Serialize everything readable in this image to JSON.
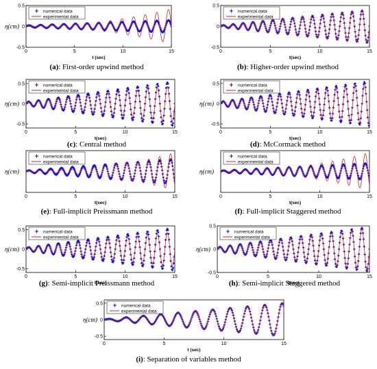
{
  "colors": {
    "numerical": "#1010e0",
    "experimental": "#d02020",
    "axis": "#000000"
  },
  "chart_data": [
    {
      "type": "line",
      "caption_letter": "(a)",
      "caption_text": ": First-order upwind method",
      "ylabel": "η(cm)",
      "xlabel": "t (sec)",
      "xlim": [
        0,
        15
      ],
      "ylim": [
        -0.5,
        0.5
      ],
      "xticks": [
        "0",
        "5",
        "10",
        "15"
      ],
      "yticks": [
        "0.5",
        "0",
        "-0.5"
      ],
      "legend": "top-left",
      "series": [
        {
          "name": "numerical data",
          "style": "markers",
          "amplitude_start": 0.02,
          "amplitude_end": 0.15,
          "period": 1.2,
          "growth": "linear"
        },
        {
          "name": "experimental data",
          "style": "line",
          "amplitude_start": 0.02,
          "amplitude_end": 0.42,
          "period": 1.2,
          "growth": "late"
        }
      ]
    },
    {
      "type": "line",
      "caption_letter": "(b)",
      "caption_text": ": Higher-order upwind method",
      "ylabel": "",
      "xlabel": "t(sec)",
      "xlim": [
        0,
        15
      ],
      "ylim": [
        -0.5,
        0.5
      ],
      "xticks": [
        "0",
        "5",
        "10",
        "15"
      ],
      "yticks": [
        "0.5",
        "0",
        "-0.5"
      ],
      "legend": "top-left",
      "series": [
        {
          "name": "numerical data",
          "style": "markers",
          "amplitude_start": 0.02,
          "amplitude_end": 0.4,
          "period": 1.0,
          "growth": "linear"
        },
        {
          "name": "experimental data",
          "style": "line",
          "amplitude_start": 0.02,
          "amplitude_end": 0.42,
          "period": 1.0,
          "growth": "linear"
        }
      ]
    },
    {
      "type": "line",
      "caption_letter": "(c)",
      "caption_text": ": Central method",
      "ylabel": "η(cm)",
      "xlabel": "t(sec)",
      "xlim": [
        0,
        15
      ],
      "ylim": [
        -0.6,
        0.6
      ],
      "xticks": [
        "0",
        "5",
        "10",
        "15"
      ],
      "yticks": [
        "0.5",
        "0",
        "-0.5"
      ],
      "legend": "top-left",
      "series": [
        {
          "name": "numerical data",
          "style": "markers",
          "amplitude_start": 0.04,
          "amplitude_end": 0.55,
          "period": 1.0,
          "growth": "linear"
        },
        {
          "name": "experimental data",
          "style": "line",
          "amplitude_start": 0.03,
          "amplitude_end": 0.45,
          "period": 1.0,
          "growth": "linear"
        }
      ]
    },
    {
      "type": "line",
      "caption_letter": "(d)",
      "caption_text": ": McCormack method",
      "ylabel": "η(cm)",
      "xlabel": "t(sec)",
      "xlim": [
        0,
        15
      ],
      "ylim": [
        -0.6,
        0.6
      ],
      "xticks": [
        "0",
        "5",
        "10",
        "15"
      ],
      "yticks": [
        "0.5",
        "0",
        "-0.5"
      ],
      "legend": "top-left",
      "series": [
        {
          "name": "numerical data",
          "style": "markers",
          "amplitude_start": 0.05,
          "amplitude_end": 0.55,
          "period": 0.95,
          "growth": "linear"
        },
        {
          "name": "experimental data",
          "style": "line",
          "amplitude_start": 0.04,
          "amplitude_end": 0.5,
          "period": 0.95,
          "growth": "linear"
        }
      ]
    },
    {
      "type": "line",
      "caption_letter": "(e)",
      "caption_text": ": Full-implicit Preissmann method",
      "ylabel": "η(cm)",
      "xlabel": "t(sec)",
      "xlim": [
        0,
        15
      ],
      "ylim": [
        -0.5,
        0.5
      ],
      "xticks": [
        "0",
        "5",
        "10",
        "15"
      ],
      "yticks": [],
      "legend": "top-left",
      "series": [
        {
          "name": "numerical data",
          "style": "markers",
          "amplitude_start": 0.02,
          "amplitude_end": 0.3,
          "period": 1.1,
          "growth": "linear"
        },
        {
          "name": "experimental data",
          "style": "line",
          "amplitude_start": 0.02,
          "amplitude_end": 0.45,
          "period": 1.1,
          "growth": "late"
        }
      ]
    },
    {
      "type": "line",
      "caption_letter": "(f)",
      "caption_text": ": Full-implicit Staggered method",
      "ylabel": "η(cm)",
      "xlabel": "t(sec)",
      "xlim": [
        0,
        15
      ],
      "ylim": [
        -0.5,
        0.5
      ],
      "xticks": [
        "0",
        "5",
        "10",
        "15"
      ],
      "yticks": [],
      "legend": "top-left",
      "series": [
        {
          "name": "numerical data",
          "style": "markers",
          "amplitude_start": 0.02,
          "amplitude_end": 0.2,
          "period": 1.1,
          "growth": "linear"
        },
        {
          "name": "experimental data",
          "style": "line",
          "amplitude_start": 0.02,
          "amplitude_end": 0.45,
          "period": 1.1,
          "growth": "late"
        }
      ]
    },
    {
      "type": "line",
      "caption_letter": "(g)",
      "caption_text": ": Semi-implicit Preissmann method",
      "ylabel": "η(cm)",
      "xlabel": "t(sec)",
      "xlim": [
        0,
        15
      ],
      "ylim": [
        -0.6,
        0.6
      ],
      "xticks": [
        "0",
        "5",
        "10",
        "15"
      ],
      "yticks": [
        "0.5",
        "0",
        "-0.5"
      ],
      "legend": "top-left",
      "series": [
        {
          "name": "numerical data",
          "style": "markers",
          "amplitude_start": 0.04,
          "amplitude_end": 0.55,
          "period": 1.0,
          "growth": "linear"
        },
        {
          "name": "experimental data",
          "style": "line",
          "amplitude_start": 0.03,
          "amplitude_end": 0.45,
          "period": 1.0,
          "growth": "linear"
        }
      ]
    },
    {
      "type": "line",
      "caption_letter": "(h)",
      "caption_text": ": Semi-implicit Staggered method",
      "ylabel": "η(cm)",
      "xlabel": "t(sec)",
      "xlim": [
        0,
        15
      ],
      "ylim": [
        -0.5,
        0.5
      ],
      "xticks": [
        "0",
        "5",
        "10",
        "15"
      ],
      "yticks": [
        "0.5",
        "0",
        "-0.5"
      ],
      "legend": "top-left",
      "series": [
        {
          "name": "numerical data",
          "style": "markers",
          "amplitude_start": 0.04,
          "amplitude_end": 0.48,
          "period": 1.0,
          "growth": "linear"
        },
        {
          "name": "experimental data",
          "style": "line",
          "amplitude_start": 0.03,
          "amplitude_end": 0.45,
          "period": 1.0,
          "growth": "linear"
        }
      ]
    },
    {
      "type": "line",
      "caption_letter": "(i)",
      "caption_text": ": Separation of variables method",
      "ylabel": "η(cm)",
      "xlabel": "t (sec)",
      "xlim": [
        0,
        15
      ],
      "ylim": [
        -0.6,
        0.6
      ],
      "xticks": [
        "0",
        "5",
        "10",
        "15"
      ],
      "yticks": [
        "0.5",
        "0",
        "-0.5"
      ],
      "legend": "top-left",
      "series": [
        {
          "name": "numerical data",
          "style": "markers",
          "amplitude_start": 0.01,
          "amplitude_end": 0.5,
          "period": 1.45,
          "growth": "linear"
        },
        {
          "name": "experimental data",
          "style": "line",
          "amplitude_start": 0.01,
          "amplitude_end": 0.5,
          "period": 1.45,
          "growth": "linear"
        }
      ]
    }
  ]
}
